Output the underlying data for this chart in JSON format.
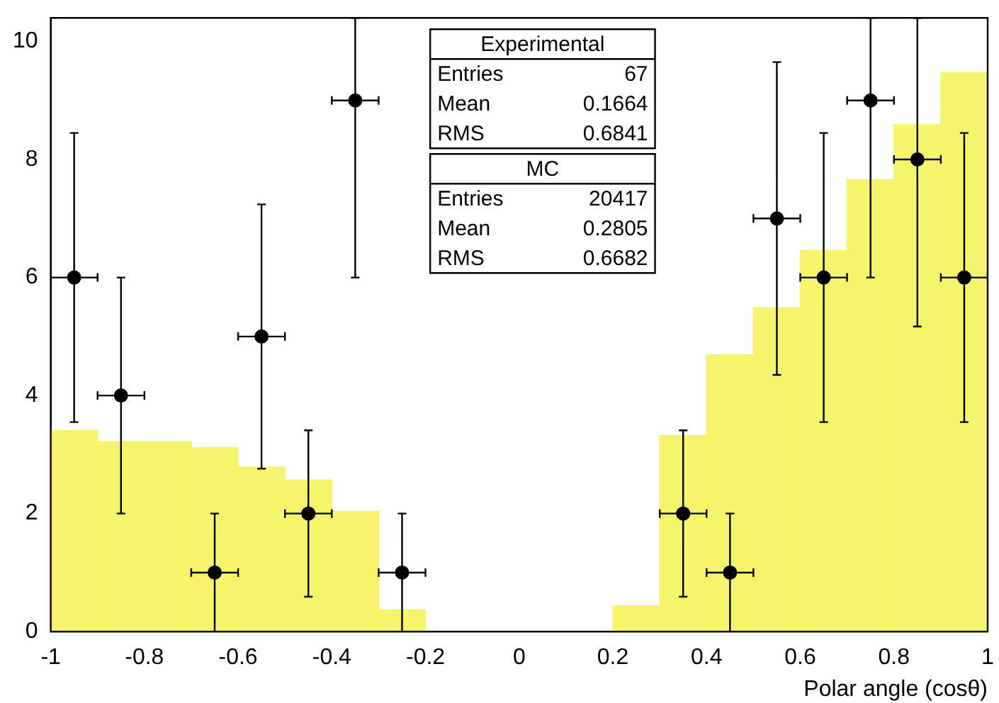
{
  "chart_data": {
    "type": "histogram",
    "xlabel": "Polar angle (cosθ)",
    "bins": [
      -1,
      -0.9,
      -0.8,
      -0.7,
      -0.6,
      -0.5,
      -0.4,
      -0.3,
      -0.2,
      -0.1,
      0,
      0.1,
      0.2,
      0.3,
      0.4,
      0.5,
      0.6,
      0.7,
      0.8,
      0.9,
      1
    ],
    "series": [
      {
        "color": "#f6f46a",
        "values": [
          3.41,
          3.22,
          3.22,
          3.12,
          2.79,
          2.57,
          2.04,
          0.37,
          0,
          0,
          0,
          0,
          0.44,
          3.32,
          4.69,
          5.49,
          6.46,
          7.66,
          8.59,
          9.47
        ]
      },
      {
        "type": "scatter",
        "color": "#000000",
        "x": [
          -0.95,
          -0.85,
          -0.65,
          -0.55,
          -0.45,
          -0.35,
          -0.25,
          0.35,
          0.45,
          0.55,
          0.65,
          0.75,
          0.85,
          0.95
        ],
        "values": [
          6,
          4,
          1,
          5,
          2,
          9,
          1,
          2,
          1,
          7,
          6,
          9,
          8,
          6
        ],
        "errors": [
          [
            3.55,
            8.45
          ],
          [
            2,
            6
          ],
          [
            0,
            2
          ],
          [
            2.76,
            7.24
          ],
          [
            0.59,
            3.41
          ],
          [
            6,
            10.4
          ],
          [
            0,
            2
          ],
          [
            0.59,
            3.41
          ],
          [
            0,
            2
          ],
          [
            4.35,
            9.65
          ],
          [
            3.55,
            8.45
          ],
          [
            6,
            10.4
          ],
          [
            5.17,
            10.4
          ],
          [
            3.55,
            8.45
          ]
        ],
        "xerrors": [
          0.05,
          0.05,
          0.05,
          0.05,
          0.05,
          0.05,
          0.05,
          0.05,
          0.05,
          0.05,
          0.05,
          0.05,
          0.05,
          0.05
        ]
      }
    ],
    "marker": "circle",
    "annotations": [
      "Experimental",
      "Entries",
      "67",
      "Mean",
      "0.1664",
      "RMS",
      "0.6841",
      "MC",
      "Entries",
      "20417",
      "Mean",
      "0.2805",
      "RMS",
      "0.6682"
    ],
    "xlim": [
      -1,
      1
    ],
    "xticks": [
      -1,
      -0.8,
      -0.6,
      -0.4,
      -0.2,
      0,
      0.2,
      0.4,
      0.6,
      0.8,
      1
    ],
    "ylim": [
      0,
      10.4
    ],
    "yticks": [
      0,
      2,
      4,
      6,
      8,
      10
    ]
  }
}
